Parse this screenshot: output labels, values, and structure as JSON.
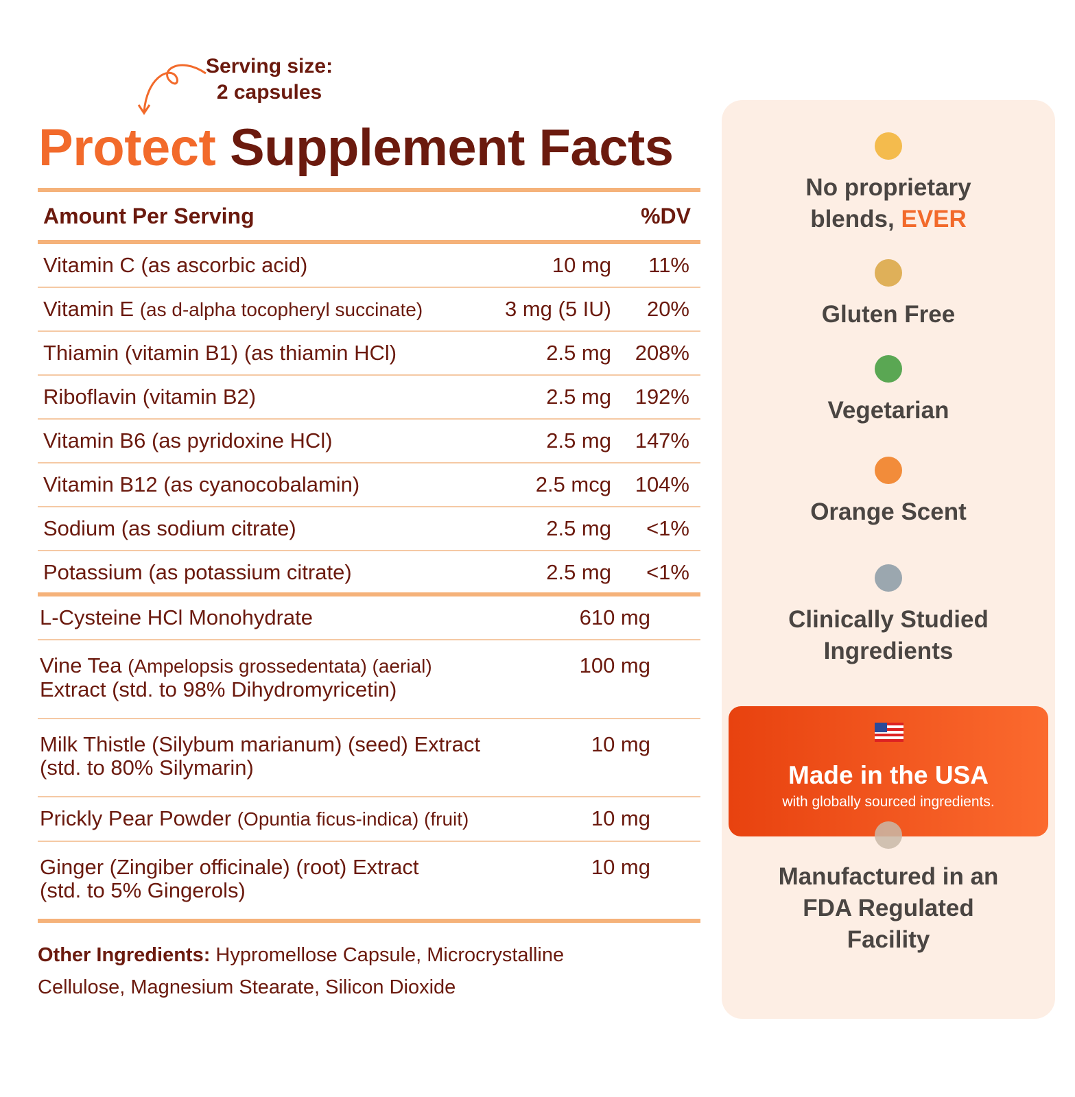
{
  "serving": {
    "label": "Serving size:",
    "value": "2 capsules"
  },
  "title": {
    "highlight": "Protect",
    "rest": "Supplement Facts"
  },
  "header": {
    "amount": "Amount Per Serving",
    "dv": "%DV"
  },
  "vitamins": [
    {
      "name": "Vitamin C (as ascorbic acid)",
      "amount": "10 mg",
      "dv": "11%"
    },
    {
      "name": "Vitamin E",
      "detail": "(as d-alpha tocopheryl succinate)",
      "amount": "3 mg (5 IU)",
      "dv": "20%"
    },
    {
      "name": "Thiamin (vitamin B1) (as thiamin HCl)",
      "amount": "2.5 mg",
      "dv": "208%"
    },
    {
      "name": "Riboflavin (vitamin B2)",
      "amount": "2.5 mg",
      "dv": "192%"
    },
    {
      "name": "Vitamin B6 (as pyridoxine HCl)",
      "amount": "2.5 mg",
      "dv": "147%"
    },
    {
      "name": "Vitamin B12 (as cyanocobalamin)",
      "amount": "2.5 mcg",
      "dv": "104%"
    },
    {
      "name": "Sodium (as sodium citrate)",
      "amount": "2.5 mg",
      "dv": "<1%"
    },
    {
      "name": "Potassium (as potassium citrate)",
      "amount": "2.5 mg",
      "dv": "<1%"
    }
  ],
  "ingredients": [
    {
      "name": "L-Cysteine HCl Monohydrate",
      "amount": "610 mg"
    },
    {
      "name": "Vine Tea",
      "detail": "(Ampelopsis grossedentata) (aerial)",
      "line2": "Extract (std. to 98% Dihydromyricetin)",
      "amount": "100 mg"
    },
    {
      "name": "Milk Thistle (Silybum marianum) (seed) Extract",
      "line2": "(std. to 80% Silymarin)",
      "amount": "10 mg"
    },
    {
      "name": "Prickly Pear Powder",
      "detail": "(Opuntia ficus-indica) (fruit)",
      "amount": "10 mg"
    },
    {
      "name": "Ginger (Zingiber officinale) (root) Extract",
      "line2": "(std. to 5% Gingerols)",
      "amount": "10 mg"
    }
  ],
  "other": {
    "label": "Other Ingredients:",
    "text": "Hypromellose Capsule, Microcrystalline Cellulose, Magnesium Stearate, Silicon Dioxide"
  },
  "features": [
    {
      "text": "No proprietary blends,",
      "highlight": "EVER"
    },
    {
      "text": "Gluten Free"
    },
    {
      "text": "Vegetarian"
    },
    {
      "text": "Orange Scent"
    },
    {
      "text": "Clinically Studied Ingredients"
    },
    {
      "text": "Made in the USA",
      "subtext": "with globally sourced ingredients."
    },
    {
      "text": "Manufactured in an FDA Regulated Facility"
    }
  ]
}
